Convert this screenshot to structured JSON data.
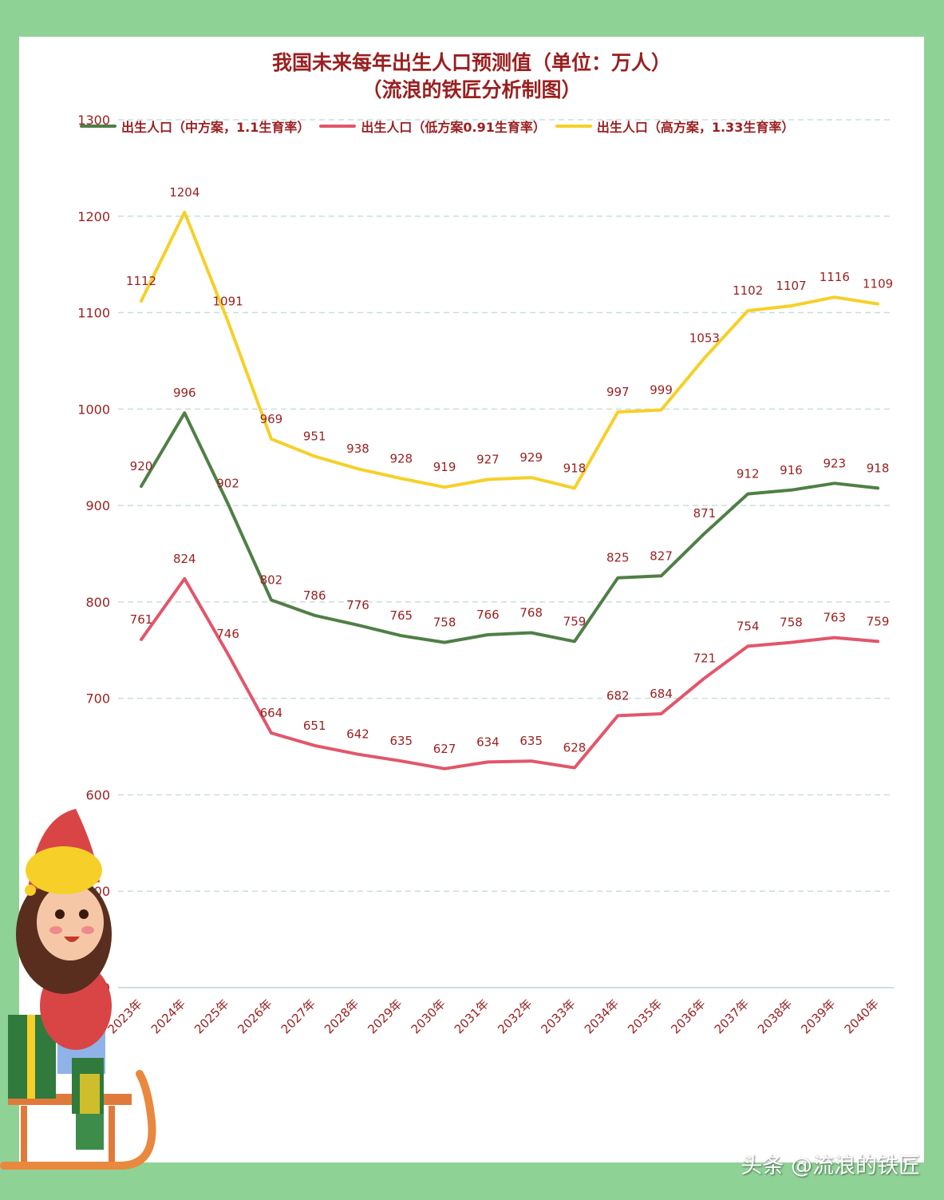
{
  "title_line1": "我国未来每年出生人口预测值（单位：万人）",
  "title_line2": "（流浪的铁匠分析制图）",
  "footer": "头条 @流浪的铁匠",
  "chart_data": {
    "type": "line",
    "categories": [
      "2023年",
      "2024年",
      "2025年",
      "2026年",
      "2027年",
      "2028年",
      "2029年",
      "2030年",
      "2031年",
      "2032年",
      "2033年",
      "2034年",
      "2035年",
      "2036年",
      "2037年",
      "2038年",
      "2039年",
      "2040年"
    ],
    "series": [
      {
        "name": "出生人口（中方案，1.1生育率）",
        "color": "#4f7f46",
        "values": [
          920,
          996,
          902,
          802,
          786,
          776,
          765,
          758,
          766,
          768,
          759,
          825,
          827,
          871,
          912,
          916,
          923,
          918
        ]
      },
      {
        "name": "出生人口（低方案0.91生育率）",
        "color": "#e2566a",
        "values": [
          761,
          824,
          746,
          664,
          651,
          642,
          635,
          627,
          634,
          635,
          628,
          682,
          684,
          721,
          754,
          758,
          763,
          759
        ]
      },
      {
        "name": "出生人口（高方案，1.33生育率）",
        "color": "#f6d028",
        "values": [
          1112,
          1204,
          1091,
          969,
          951,
          938,
          928,
          919,
          927,
          929,
          918,
          997,
          999,
          1053,
          1102,
          1107,
          1116,
          1109
        ]
      }
    ],
    "yticks": [
      "400",
      "500",
      "600",
      "700",
      "800",
      "900",
      "1000",
      "1100",
      "1200",
      "1300"
    ],
    "ylim": [
      400,
      1300
    ],
    "grid": true,
    "legend_position": "top"
  }
}
